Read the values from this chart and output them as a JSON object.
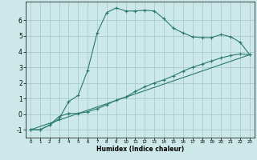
{
  "xlabel": "Humidex (Indice chaleur)",
  "background_color": "#cce8e8",
  "grid_color": "#aacccc",
  "line_color": "#2a7a6a",
  "xlim": [
    -0.5,
    23.5
  ],
  "ylim": [
    -1.5,
    7.2
  ],
  "xticks": [
    0,
    1,
    2,
    3,
    4,
    5,
    6,
    7,
    8,
    9,
    10,
    11,
    12,
    13,
    14,
    15,
    16,
    17,
    18,
    19,
    20,
    21,
    22,
    23
  ],
  "yticks": [
    -1,
    0,
    1,
    2,
    3,
    4,
    5,
    6
  ],
  "curve1_x": [
    0,
    1,
    2,
    3,
    4,
    5,
    6,
    7,
    8,
    9,
    10,
    11,
    12,
    13,
    14,
    15,
    16,
    17,
    18,
    19,
    20,
    21,
    22,
    23
  ],
  "curve1_y": [
    -1.0,
    -1.0,
    -0.7,
    -0.3,
    0.8,
    1.2,
    2.8,
    5.2,
    6.5,
    6.8,
    6.6,
    6.6,
    6.65,
    6.6,
    6.1,
    5.5,
    5.2,
    4.95,
    4.9,
    4.9,
    5.1,
    4.95,
    4.6,
    3.8
  ],
  "curve2_x": [
    0,
    1,
    2,
    3,
    4,
    5,
    6,
    7,
    8,
    9,
    10,
    11,
    12,
    13,
    14,
    15,
    16,
    17,
    18,
    19,
    20,
    21,
    22,
    23
  ],
  "curve2_y": [
    -1.0,
    -1.0,
    -0.7,
    -0.15,
    0.05,
    0.05,
    0.15,
    0.35,
    0.6,
    0.9,
    1.1,
    1.45,
    1.75,
    2.0,
    2.2,
    2.45,
    2.75,
    3.0,
    3.2,
    3.4,
    3.6,
    3.75,
    3.85,
    3.8
  ],
  "curve3_x": [
    0,
    23
  ],
  "curve3_y": [
    -1.0,
    3.8
  ]
}
